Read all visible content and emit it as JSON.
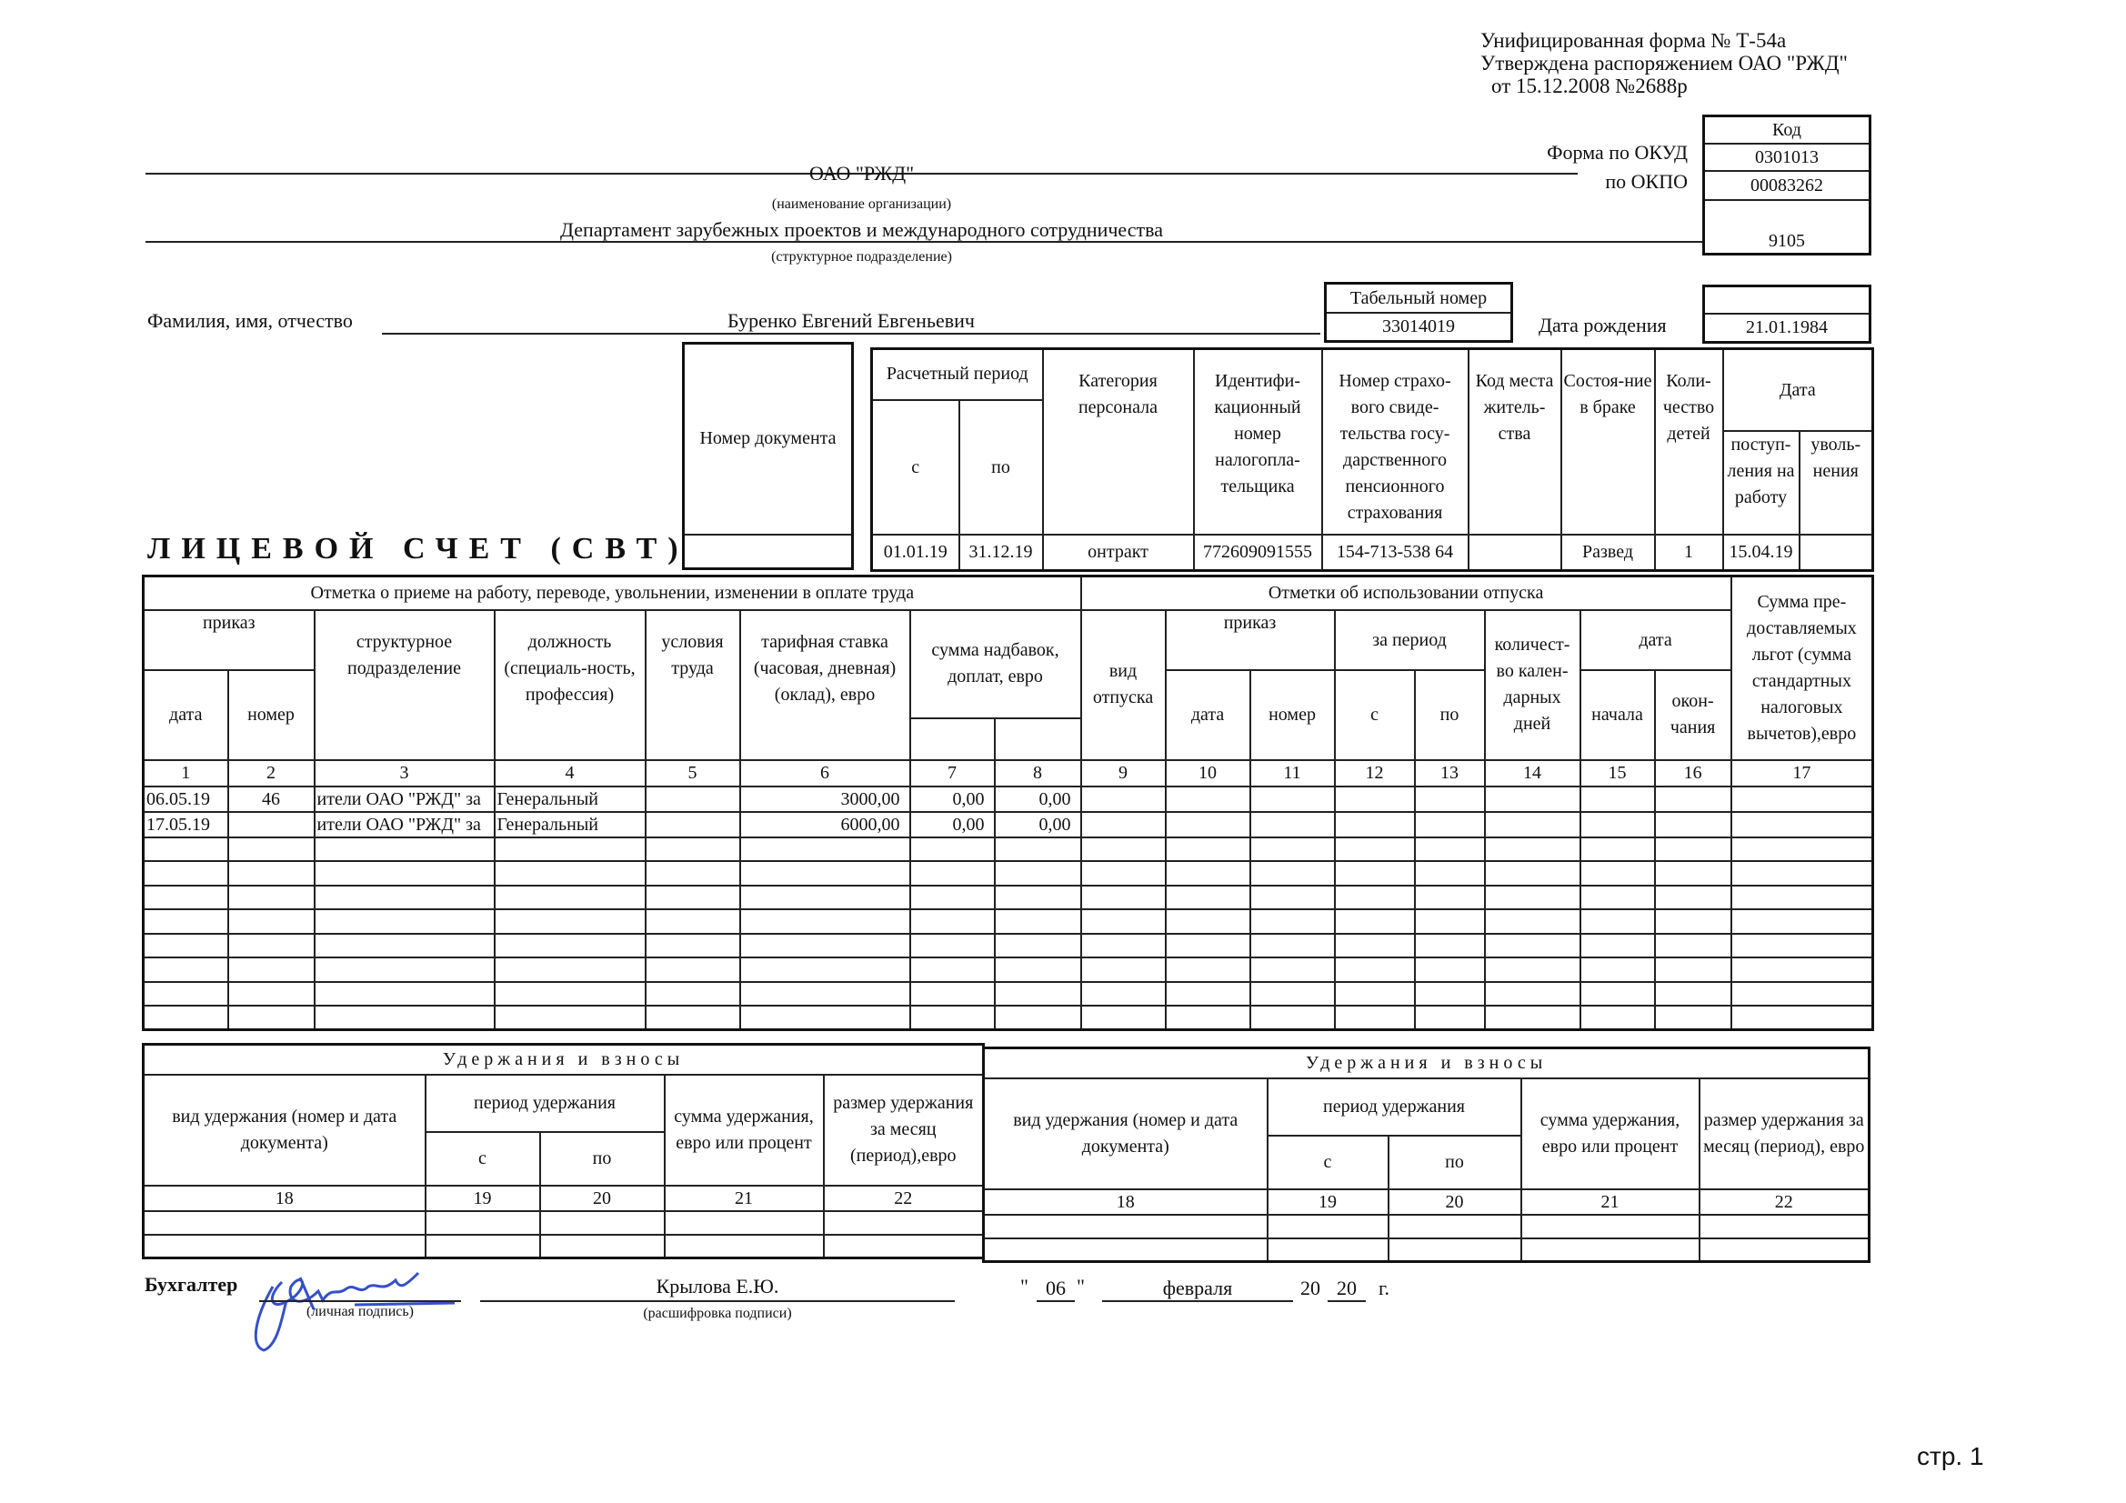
{
  "header": {
    "line1": "Унифицированная форма № Т-54а",
    "line2": "Утверждена распоряжением ОАО \"РЖД\"",
    "line3": "от  15.12.2008 №2688р"
  },
  "codes": {
    "kod_label": "Код",
    "okud_label": "Форма по ОКУД",
    "okud": "0301013",
    "okpo_label": "по ОКПО",
    "okpo": "00083262",
    "dept_code": "9105"
  },
  "org": {
    "name": "ОАО \"РЖД\"",
    "name_caption": "(наименование организации)",
    "dept": "Департамент зарубежных проектов и международного сотрудничества",
    "dept_caption": "(структурное подразделение)"
  },
  "person": {
    "fio_label": "Фамилия, имя, отчество",
    "fio": "Буренко Евгений Евгеньевич",
    "tab_label": "Табельный номер",
    "tab": "33014019",
    "birth_label": "Дата рождения",
    "birth": "21.01.1984"
  },
  "title": "ЛИЦЕВОЙ СЧЕТ (СВТ)",
  "info": {
    "doc_label": "Номер документа",
    "doc": "",
    "period_label": "Расчетный период",
    "from_label": "с",
    "to_label": "по",
    "category_label": "Категория персонала",
    "inn_label": "Идентифи-кационный номер налогопла-тельщика",
    "snils_label": "Номер страхо-вого свиде-тельства госу-дарственного пенсионного страхования",
    "residence_label": "Код места житель-ства",
    "marital_label": "Состоя-ние в браке",
    "children_label": "Коли-чество детей",
    "date_label": "Дата",
    "hire_label": "поступ-ления на работу",
    "fire_label": "уволь-нения",
    "from": "01.01.19",
    "to": "31.12.19",
    "category": "онтракт",
    "inn": "772609091555",
    "snils": "154-713-538 64",
    "residence": "",
    "marital": "Развед",
    "children": "1",
    "hire": "15.04.19",
    "fire": ""
  },
  "main": {
    "left_title": "Отметка о приеме на работу, переводе, увольнении, изменении в оплате труда",
    "right_title": "Отметки об использовании отпуска",
    "order": "приказ",
    "date": "дата",
    "number": "номер",
    "unit": "структурное подразделение",
    "position": "должность (специаль-ность, профессия)",
    "conditions": "условия труда",
    "rate": "тарифная ставка (часовая, дневная) (оклад), евро",
    "bonus": "сумма надбавок, доплат, евро",
    "leave_type": "вид отпуска",
    "for_period": "за период",
    "from": "с",
    "to": "по",
    "days": "количест-во кален-дарных дней",
    "leave_date": "дата",
    "start": "начала",
    "end": "окон-чания",
    "benefits": "Сумма пре-доставляемых льгот (сумма стандартных налоговых вычетов),евро",
    "nums": [
      "1",
      "2",
      "3",
      "4",
      "5",
      "6",
      "7",
      "8",
      "9",
      "10",
      "11",
      "12",
      "13",
      "14",
      "15",
      "16",
      "17"
    ],
    "rows": [
      [
        "06.05.19",
        "46",
        "ители ОАО \"РЖД\" за",
        "Генеральный",
        "",
        "3000,00",
        "0,00",
        "0,00"
      ],
      [
        "17.05.19",
        "",
        "ители ОАО \"РЖД\" за",
        "Генеральный",
        "",
        "6000,00",
        "0,00",
        "0,00"
      ]
    ]
  },
  "deductions": {
    "title": "Удержания и взносы",
    "type": "вид удержания (номер и дата документа)",
    "period": "период удержания",
    "from": "с",
    "to": "по",
    "sum": "сумма удержания, евро или процент",
    "size_left": "размер удержания за месяц (период),евро",
    "size_right": "размер удержания за месяц (период), евро",
    "nums": [
      "18",
      "19",
      "20",
      "21",
      "22"
    ]
  },
  "sign": {
    "role": "Бухгалтер",
    "sig_caption": "(личная подпись)",
    "name": "Крылова Е.Ю.",
    "name_caption": "(расшифровка подписи)",
    "day": "06",
    "month": "февраля",
    "year_prefix": "20",
    "year": "20",
    "year_suffix": "г.",
    "q1": "\"",
    "q2": "\""
  },
  "page": "стр. 1"
}
